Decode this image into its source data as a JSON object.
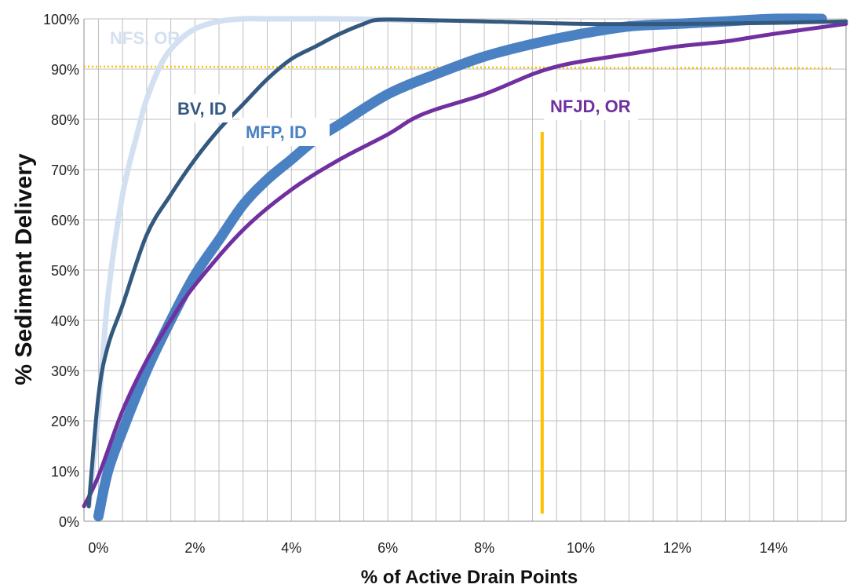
{
  "chart_data": {
    "type": "line",
    "title": "",
    "xlabel": "% of Active Drain Points",
    "ylabel": "% Sediment Delivery",
    "xlim": [
      -0.3,
      15.5
    ],
    "ylim": [
      0,
      100
    ],
    "x_ticks": [
      "0%",
      "2%",
      "4%",
      "6%",
      "8%",
      "10%",
      "12%",
      "14%"
    ],
    "y_ticks": [
      "0%",
      "10%",
      "20%",
      "30%",
      "40%",
      "50%",
      "60%",
      "70%",
      "80%",
      "90%",
      "100%"
    ],
    "grid": true,
    "legend": "none (series labeled directly on chart)",
    "series": [
      {
        "name": "NFS, OR",
        "color": "#d3e0f1",
        "x": [
          -0.2,
          0,
          0.2,
          0.5,
          0.8,
          1.0,
          1.3,
          1.6,
          2.0,
          2.5,
          3.0,
          3.5,
          4.0,
          5.0,
          6.0,
          7.0
        ],
        "y": [
          3,
          22,
          45,
          65,
          77,
          84,
          91,
          95,
          98,
          99.5,
          100,
          100,
          100,
          100,
          99.8,
          99.5
        ]
      },
      {
        "name": "BV, ID",
        "color": "#34597f",
        "x": [
          -0.2,
          0,
          0.2,
          0.5,
          1.0,
          1.5,
          2.0,
          2.5,
          3.0,
          3.5,
          4.0,
          4.5,
          5.0,
          5.5,
          5.8,
          6.5,
          8.0,
          10.0,
          12.0,
          14.0,
          15.5
        ],
        "y": [
          3,
          25,
          35,
          43,
          57,
          65,
          72,
          78,
          83,
          88,
          92,
          94.5,
          97,
          99,
          99.8,
          99.8,
          99.5,
          99,
          99,
          99.2,
          99.5
        ]
      },
      {
        "name": "MFP, ID",
        "color": "#4a81c2",
        "x": [
          0,
          0.2,
          0.5,
          1.0,
          1.5,
          2.0,
          2.5,
          3.0,
          3.5,
          4.0,
          4.5,
          5.0,
          6.0,
          7.0,
          8.0,
          9.0,
          10.0,
          11.0,
          12.0,
          13.0,
          14.0,
          15.0
        ],
        "y": [
          1,
          10,
          18,
          30,
          40,
          49,
          56,
          63,
          68,
          72,
          76,
          79,
          85,
          89,
          92.5,
          95,
          97,
          98.5,
          99,
          99.5,
          100,
          100
        ]
      },
      {
        "name": "NFJD, OR",
        "color": "#7030a0",
        "x": [
          -0.3,
          0,
          0.5,
          1.0,
          1.5,
          2.0,
          3.0,
          4.0,
          5.0,
          6.0,
          6.5,
          7.0,
          8.0,
          9.0,
          9.5,
          10.0,
          11.0,
          12.0,
          13.0,
          14.0,
          15.5
        ],
        "y": [
          3,
          9,
          22,
          32,
          40,
          47,
          58,
          66,
          72,
          77,
          80,
          82,
          85,
          89,
          90.5,
          91.5,
          93,
          94.5,
          95.5,
          97,
          99
        ]
      }
    ],
    "annotations": {
      "reference_line_horizontal": {
        "y": 90.5,
        "color": "#ffc000",
        "style": "dotted"
      },
      "reference_line_vertical": {
        "x": 9.2,
        "y_from": 1.5,
        "y_to": 77.5,
        "color": "#ffc000",
        "style": "solid"
      }
    }
  }
}
